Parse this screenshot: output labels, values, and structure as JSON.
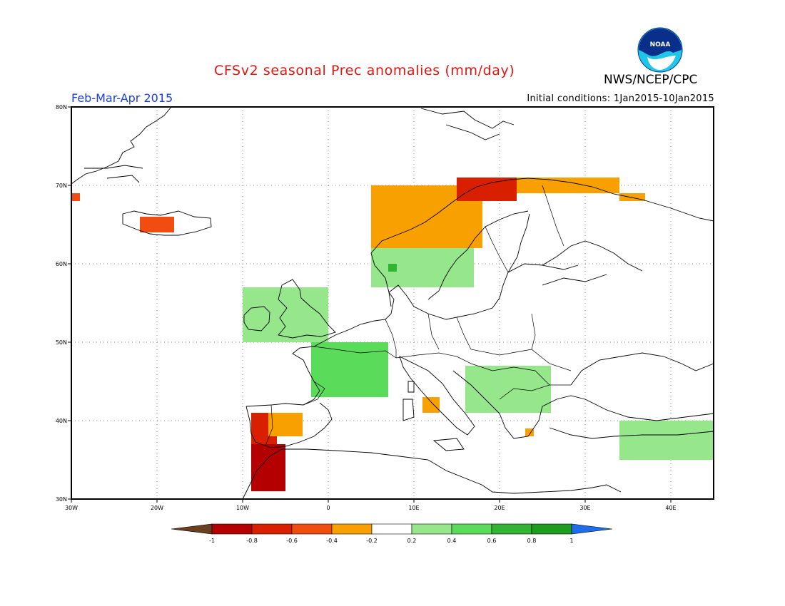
{
  "header": {
    "title": "CFSv2 seasonal Prec anomalies (mm/day)",
    "season": "Feb-Mar-Apr 2015",
    "initial_conditions": "Initial conditions: 1Jan2015-10Jan2015",
    "agency": "NWS/NCEP/CPC",
    "logo_text": "NOAA"
  },
  "map": {
    "lon_range": [
      -30,
      45
    ],
    "lat_range": [
      30,
      80
    ],
    "lat_ticks": [
      "30N",
      "40N",
      "50N",
      "60N",
      "70N",
      "80N"
    ],
    "lon_ticks": [
      "30W",
      "20W",
      "10W",
      "0",
      "10E",
      "20E",
      "30E",
      "40E"
    ],
    "gridlines": "dotted",
    "anomaly_regions": [
      {
        "region": "Western Norway coast",
        "lat": [
          62,
          70
        ],
        "lon": [
          5,
          18
        ],
        "category": "-0.4 to -0.2"
      },
      {
        "region": "Northern Norway",
        "lat": [
          68,
          71
        ],
        "lon": [
          15,
          22
        ],
        "category": "-0.8 to -0.6"
      },
      {
        "region": "Northern Scandinavia coast",
        "lat": [
          69,
          71
        ],
        "lon": [
          22,
          34
        ],
        "category": "-0.4 to -0.2"
      },
      {
        "region": "Kola / Barents coast",
        "lat": [
          68,
          69
        ],
        "lon": [
          34,
          37
        ],
        "category": "-0.4 to -0.2"
      },
      {
        "region": "Iceland",
        "lat": [
          64,
          66
        ],
        "lon": [
          -22,
          -18
        ],
        "category": "-0.6 to -0.4"
      },
      {
        "region": "Greenland coast",
        "lat": [
          68,
          69
        ],
        "lon": [
          -30,
          -29
        ],
        "category": "-0.6 to -0.4"
      },
      {
        "region": "Western Iberia",
        "lat": [
          37,
          41
        ],
        "lon": [
          -9,
          -6
        ],
        "category": "-0.8 to -0.6"
      },
      {
        "region": "Central Iberia",
        "lat": [
          38,
          41
        ],
        "lon": [
          -7,
          -3
        ],
        "category": "-0.4 to -0.2"
      },
      {
        "region": "Gibraltar / Morocco",
        "lat": [
          31,
          37
        ],
        "lon": [
          -9,
          -5
        ],
        "category": "-1 to -0.8"
      },
      {
        "region": "Central Italy",
        "lat": [
          41,
          43
        ],
        "lon": [
          11,
          13
        ],
        "category": "-0.4 to -0.2"
      },
      {
        "region": "Aegean",
        "lat": [
          38,
          39
        ],
        "lon": [
          23,
          24
        ],
        "category": "-0.4 to -0.2"
      },
      {
        "region": "France",
        "lat": [
          43,
          50
        ],
        "lon": [
          -2,
          7
        ],
        "category": "0.4 to 0.6"
      },
      {
        "region": "British Isles",
        "lat": [
          50,
          57
        ],
        "lon": [
          -10,
          0
        ],
        "category": "0.2 to 0.4"
      },
      {
        "region": "Southern Scandinavia",
        "lat": [
          57,
          62
        ],
        "lon": [
          5,
          17
        ],
        "category": "0.2 to 0.4"
      },
      {
        "region": "Southwest Norway",
        "lat": [
          59,
          60
        ],
        "lon": [
          7,
          8
        ],
        "category": "0.6 to 0.8"
      },
      {
        "region": "Balkans",
        "lat": [
          41,
          47
        ],
        "lon": [
          16,
          26
        ],
        "category": "0.2 to 0.4"
      },
      {
        "region": "Turkey",
        "lat": [
          35,
          40
        ],
        "lon": [
          34,
          45
        ],
        "category": "0.2 to 0.4"
      }
    ]
  },
  "colorbar": {
    "ticks": [
      "-1",
      "-0.8",
      "-0.6",
      "-0.4",
      "-0.2",
      "0.2",
      "0.4",
      "0.6",
      "0.8",
      "1"
    ],
    "colors": [
      "#6b4020",
      "#b40000",
      "#d82000",
      "#f24d10",
      "#f8a000",
      "#ffffff",
      "#96e68c",
      "#5adc5a",
      "#32b432",
      "#1e9c1e",
      "#1e6eeb"
    ]
  }
}
